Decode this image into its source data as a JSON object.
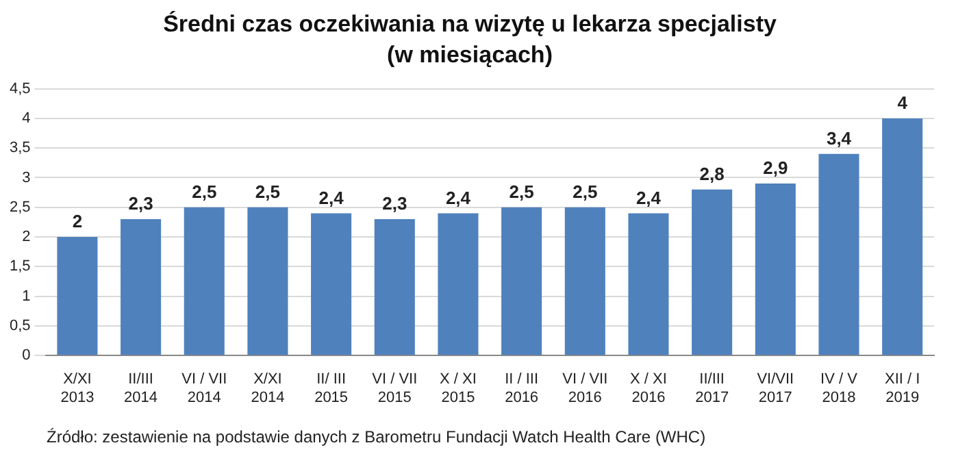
{
  "chart_data": {
    "type": "bar",
    "title": "Średni czas oczekiwania na wizytę u lekarza specjalisty",
    "subtitle": "(w miesiącach)",
    "categories": [
      "X/XI 2013",
      "II/III 2014",
      "VI / VII 2014",
      "X/XI 2014",
      "II/ III 2015",
      "VI / VII 2015",
      "X / XI 2015",
      "II / III 2016",
      "VI / VII 2016",
      "X / XI 2016",
      "II/III 2017",
      "VI/VII 2017",
      "IV / V 2018",
      "XII / I 2019"
    ],
    "values": [
      2,
      2.3,
      2.5,
      2.5,
      2.4,
      2.3,
      2.4,
      2.5,
      2.5,
      2.4,
      2.8,
      2.9,
      3.4,
      4
    ],
    "color": "#4f81bd",
    "value_labels": [
      "2",
      "2,3",
      "2,5",
      "2,5",
      "2,4",
      "2,3",
      "2,4",
      "2,5",
      "2,5",
      "2,4",
      "2,8",
      "2,9",
      "3,4",
      "4"
    ],
    "ylim": [
      0,
      4.5
    ],
    "yticks": [
      0,
      {
        "value": 0.5,
        "label": "0,5"
      },
      1,
      {
        "value": 1.5,
        "label": "1,5"
      },
      2,
      {
        "value": 2.5,
        "label": "2,5"
      },
      3,
      {
        "value": 3.5,
        "label": "3,5"
      },
      4,
      {
        "value": 4.5,
        "label": "4,5"
      }
    ],
    "grid": "y",
    "legend": false,
    "annotations": [
      "Źródło: zestawienie na podstawie danych z Barometru Fundacji Watch Health Care (WHC)"
    ]
  }
}
